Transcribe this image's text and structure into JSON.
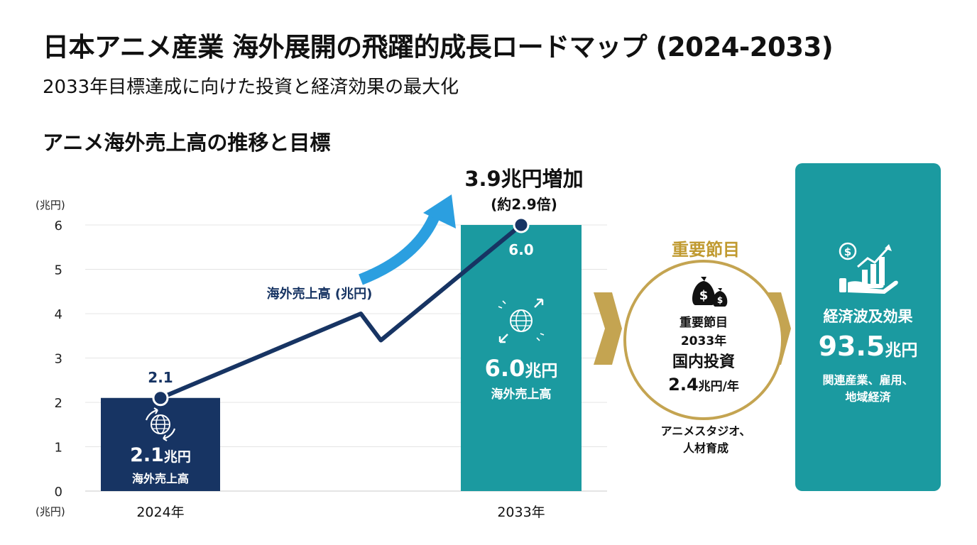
{
  "header": {
    "title": "日本アニメ産業 海外展開の飛躍的成長ロードマップ (2024-2033)",
    "subtitle": "2033年目標達成に向けた投資と経済効果の最大化"
  },
  "section_title": "アニメ海外売上高の推移と目標",
  "chart_data": {
    "type": "bar",
    "categories": [
      "2024年",
      "2033年"
    ],
    "values": [
      2.1,
      6.0
    ],
    "ylim": [
      0,
      6
    ],
    "yticks": [
      "0",
      "1",
      "2",
      "3",
      "4",
      "5",
      "6"
    ],
    "y_unit_label": "(兆円)",
    "x_unit_label": "(兆円)",
    "grid": true,
    "colors": {
      "bar_2024": "#173463",
      "bar_2033": "#1b9aa0",
      "line": "#173463",
      "arrow": "#2b9fe0"
    },
    "line_series": {
      "name": "海外売上高 (兆円)",
      "points": [
        [
          2024,
          2.1
        ],
        [
          2029,
          4.0
        ],
        [
          2029.5,
          3.4
        ],
        [
          2033,
          6.0
        ]
      ]
    },
    "point_labels": [
      "2.1",
      "6.0"
    ],
    "bar_labels": [
      {
        "value_num": "2.1",
        "value_unit": "兆円",
        "caption": "海外売上高"
      },
      {
        "value_num": "6.0",
        "value_unit": "兆円",
        "caption": "海外売上高"
      }
    ],
    "growth_annotation": {
      "main": "3.9兆円増加",
      "sub": "(約2.9倍)"
    }
  },
  "milestone": {
    "label": "重要節目",
    "line1": "重要節目",
    "line2": "2033年",
    "line3": "国内投資",
    "value_num": "2.4",
    "value_unit": "兆円/年",
    "caption_line1": "アニメスタジオ、",
    "caption_line2": "人材育成",
    "icon": "money-bag-icon",
    "border_color": "#c4a451"
  },
  "impact": {
    "title": "経済波及効果",
    "value_num": "93.5",
    "value_unit": "兆円",
    "desc_line1": "関連産業、雇用、",
    "desc_line2": "地域経済",
    "icon": "growth-chart-icon",
    "color": "#1b9aa0"
  },
  "flow_arrow_color": "#c4a451"
}
